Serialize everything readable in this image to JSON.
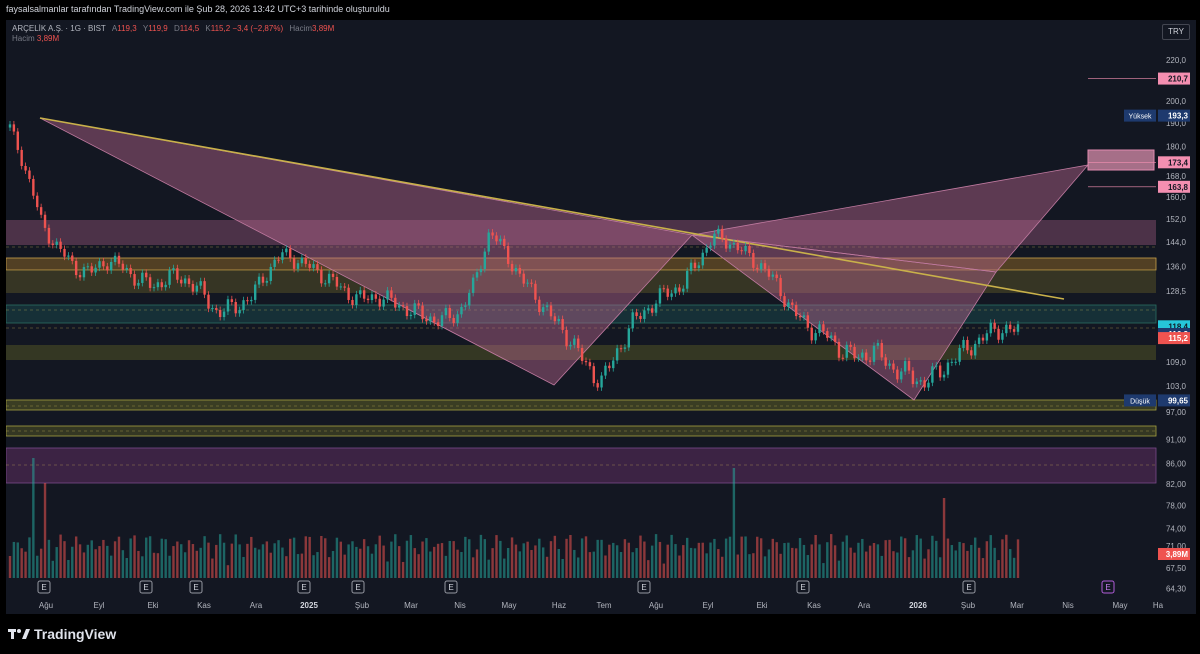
{
  "header": {
    "caption": "faysalsalmanlar tarafından TradingView.com ile Şub 28, 2026 13:42 UTC+3 tarihinde oluşturuldu"
  },
  "legend": {
    "symbol": "ARÇELİK A.Ş. · 1G · BIST",
    "open_label": "A",
    "open": "119,3",
    "high_label": "Y",
    "high": "119,9",
    "low_label": "D",
    "low": "114,5",
    "close_label": "K",
    "close": "115,2",
    "change": "−3,4 (−2,87%)",
    "volume_label": "Hacim",
    "volume": "3,89M"
  },
  "currency": "TRY",
  "colors": {
    "up": "#26a69a",
    "down": "#ef5350",
    "trend": "#c9b14a",
    "pattern": "#b8658f",
    "zone": "#7a6a2a"
  },
  "chart_data": {
    "type": "candlestick",
    "title": "ARÇELİK A.Ş. · 1G · BIST",
    "price_axis": {
      "scale": "log",
      "ticks": [
        "220,0",
        "210,0",
        "200,0",
        "190,0",
        "180,0",
        "168,0",
        "160,0",
        "152,0",
        "144,0",
        "136,0",
        "128,5",
        "118,0",
        "109,0",
        "103,0",
        "97,00",
        "91,00",
        "86,00",
        "82,00",
        "78,00",
        "74,00",
        "71,00",
        "67,50",
        "64,30"
      ]
    },
    "time_axis": {
      "ticks": [
        "Ağu",
        "Eyl",
        "Eki",
        "Kas",
        "Ara",
        "2025",
        "Şub",
        "Mar",
        "Nis",
        "May",
        "Haz",
        "Tem",
        "Ağu",
        "Eyl",
        "Eki",
        "Kas",
        "Ara",
        "2026",
        "Şub",
        "Mar",
        "Nis",
        "May",
        "Ha"
      ]
    },
    "price_labels": [
      {
        "text": "210,7",
        "price": 210.7,
        "style": "pink"
      },
      {
        "text": "193,3",
        "price": 193.3,
        "style": "navy",
        "tag": "Yüksek"
      },
      {
        "text": "173,4",
        "price": 173.4,
        "style": "pink"
      },
      {
        "text": "163,8",
        "price": 163.8,
        "style": "pink"
      },
      {
        "text": "118,4",
        "price": 118.4,
        "style": "teal"
      },
      {
        "text": "116,3",
        "price": 116.3,
        "style": "navy"
      },
      {
        "text": "115,2",
        "price": 115.2,
        "style": "red"
      },
      {
        "text": "99,65",
        "price": 99.65,
        "style": "navy",
        "tag": "Düşük"
      },
      {
        "text": "3,89M",
        "price": 71.2,
        "style": "red"
      }
    ],
    "earnings_markers": [
      "E",
      "E",
      "E",
      "E",
      "E",
      "E",
      "E",
      "E",
      "E"
    ],
    "future_marker": "E"
  },
  "footer": {
    "logo_text": "TradingView"
  }
}
